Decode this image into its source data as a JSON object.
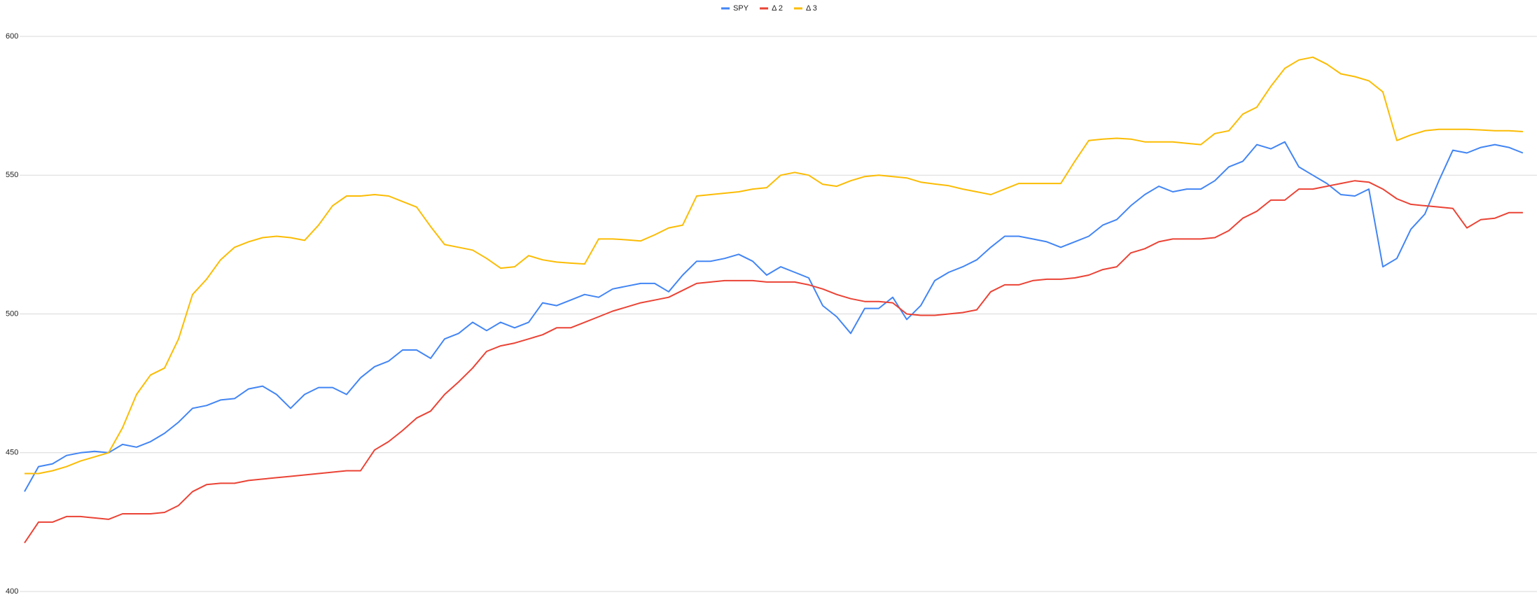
{
  "chart_data": {
    "type": "line",
    "categories": [
      null,
      null,
      null,
      null,
      null,
      null,
      null,
      null,
      null,
      null,
      null,
      null,
      null,
      null,
      null,
      null,
      null,
      null,
      null,
      null,
      null,
      null,
      null,
      null,
      null,
      null,
      null,
      null,
      null,
      null,
      null,
      null,
      null,
      null,
      null,
      null,
      null,
      null,
      null,
      null,
      null,
      null,
      null,
      null,
      null,
      null,
      null,
      null,
      null,
      null,
      null,
      null,
      null,
      null,
      null,
      null,
      null,
      null,
      null,
      null,
      null,
      null,
      null,
      null,
      null,
      null,
      null,
      null,
      null,
      null,
      null,
      null,
      null,
      null,
      null,
      null,
      null,
      null,
      null,
      null,
      null,
      null,
      null,
      null,
      null,
      null,
      null,
      null,
      null,
      null,
      null,
      null,
      null,
      null,
      null,
      null,
      null,
      null,
      null,
      null,
      null,
      null,
      null,
      null,
      null,
      null,
      null,
      null
    ],
    "series": [
      {
        "name": "SPY",
        "color": "#4285f4",
        "values": [
          436,
          445,
          446,
          449,
          450,
          450.5,
          450,
          453,
          452,
          454,
          457,
          461,
          466,
          467,
          469,
          469.5,
          473,
          474,
          471,
          466,
          471,
          473.5,
          473.5,
          471,
          477,
          481,
          483,
          487,
          487,
          484,
          491,
          493,
          497,
          494,
          497,
          495,
          497,
          504,
          503,
          505,
          507,
          506,
          509,
          510,
          511,
          511,
          508,
          514,
          519,
          519,
          520,
          521.5,
          519,
          514,
          517,
          515,
          513,
          503,
          499,
          493,
          502,
          502,
          506,
          498,
          503,
          512,
          515,
          517,
          519.5,
          524,
          528,
          528,
          527,
          526,
          524,
          526,
          528,
          532,
          534,
          539,
          543,
          546,
          544,
          545,
          545,
          548,
          553,
          555,
          561,
          559.5,
          562,
          553,
          550,
          547,
          543,
          542.5,
          545,
          517,
          520,
          530.5,
          536,
          548,
          559,
          558,
          560,
          561,
          560,
          558
        ]
      },
      {
        "name": "Δ 2",
        "color": "#ea4335",
        "values": [
          417.5,
          425,
          425,
          427,
          427,
          426.5,
          426,
          428,
          428,
          428,
          428.5,
          431,
          436,
          438.5,
          439,
          439,
          440,
          440.5,
          441,
          441.5,
          442,
          442.5,
          443,
          443.5,
          443.5,
          451,
          454,
          458,
          462.5,
          465,
          471,
          475.5,
          480.5,
          486.5,
          488.5,
          489.5,
          491,
          492.5,
          495,
          495,
          497,
          499,
          501,
          502.5,
          504,
          505,
          506,
          508.5,
          511,
          511.5,
          512,
          512,
          512,
          511.5,
          511.5,
          511.5,
          510.5,
          509,
          507,
          505.5,
          504.5,
          504.5,
          504,
          500,
          499.5,
          499.5,
          500,
          500.5,
          501.5,
          508,
          510.5,
          510.5,
          512,
          512.5,
          512.5,
          513,
          514,
          516,
          517,
          522,
          523.5,
          526,
          527,
          527,
          527,
          527.5,
          530,
          534.5,
          537,
          541,
          541,
          545,
          545,
          546,
          547,
          548,
          547.5,
          545,
          541.5,
          539.5,
          539,
          538.5,
          538,
          531,
          534,
          534.5,
          536.5,
          536.5
        ]
      },
      {
        "name": "Δ 3",
        "color": "#fbbc04",
        "values": [
          442.5,
          442.5,
          443.5,
          445,
          447,
          448.5,
          450,
          459,
          471,
          478,
          480.5,
          491,
          507,
          512.5,
          519.5,
          524,
          526,
          527.5,
          528,
          527.5,
          526.5,
          532,
          539,
          542.5,
          542.5,
          543,
          542.5,
          540.5,
          538.5,
          531.5,
          525,
          524,
          523,
          520,
          516.5,
          517,
          521,
          519.5,
          518.7,
          518.3,
          518,
          527,
          527,
          526.7,
          526.3,
          528.5,
          531,
          532,
          542.5,
          543,
          543.5,
          544,
          545,
          545.5,
          550,
          551,
          550,
          546.7,
          546,
          548,
          549.5,
          550,
          549.5,
          549,
          547.5,
          546.8,
          546.2,
          545,
          544,
          543,
          545,
          547,
          547,
          547,
          547,
          555,
          562.5,
          563,
          563.3,
          563,
          562,
          562,
          562,
          561.5,
          561,
          565,
          566,
          572,
          574.5,
          582,
          588.5,
          591.5,
          592.5,
          590,
          586.5,
          585.5,
          584,
          580,
          562.5,
          564.5,
          566,
          566.5,
          566.5,
          566.5,
          566.3,
          566,
          566,
          565.7
        ]
      }
    ],
    "ylim": [
      400,
      600
    ],
    "yticks": [
      400,
      450,
      500,
      550,
      600
    ],
    "grid": true,
    "legend": "top"
  }
}
